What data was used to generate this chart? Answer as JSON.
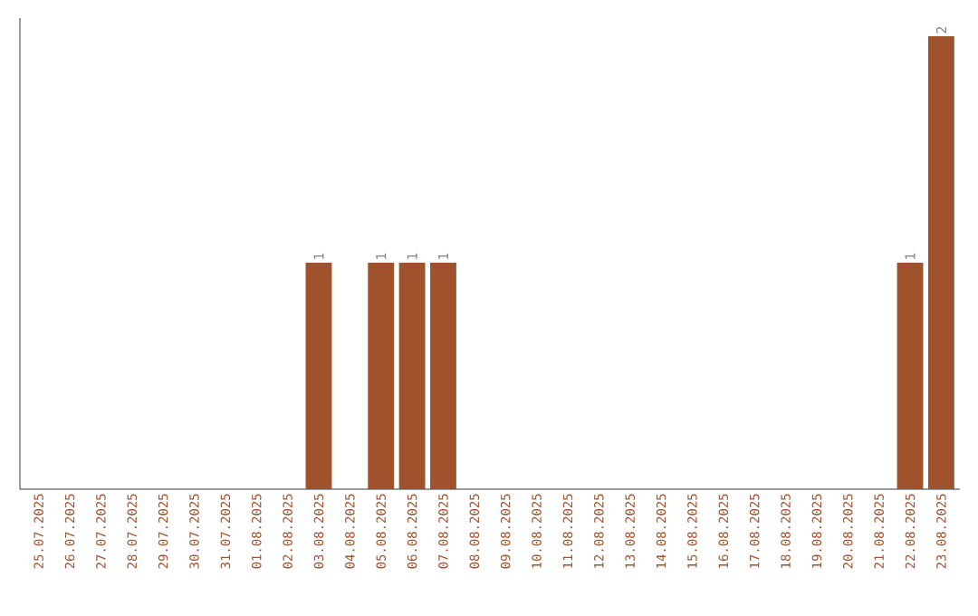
{
  "chart_data": {
    "type": "bar",
    "categories": [
      "25.07.2025",
      "26.07.2025",
      "27.07.2025",
      "28.07.2025",
      "29.07.2025",
      "30.07.2025",
      "31.07.2025",
      "01.08.2025",
      "02.08.2025",
      "03.08.2025",
      "04.08.2025",
      "05.08.2025",
      "06.08.2025",
      "07.08.2025",
      "08.08.2025",
      "09.08.2025",
      "10.08.2025",
      "11.08.2025",
      "12.08.2025",
      "13.08.2025",
      "14.08.2025",
      "15.08.2025",
      "16.08.2025",
      "17.08.2025",
      "18.08.2025",
      "19.08.2025",
      "20.08.2025",
      "21.08.2025",
      "22.08.2025",
      "23.08.2025"
    ],
    "values": [
      0,
      0,
      0,
      0,
      0,
      0,
      0,
      0,
      0,
      1,
      0,
      1,
      1,
      1,
      0,
      0,
      0,
      0,
      0,
      0,
      0,
      0,
      0,
      0,
      0,
      0,
      0,
      0,
      1,
      2
    ],
    "value_labels": [
      null,
      null,
      null,
      null,
      null,
      null,
      null,
      null,
      null,
      "1",
      null,
      "1",
      "1",
      "1",
      null,
      null,
      null,
      null,
      null,
      null,
      null,
      null,
      null,
      null,
      null,
      null,
      null,
      null,
      "1",
      "2"
    ],
    "color": "#a0522d"
  }
}
